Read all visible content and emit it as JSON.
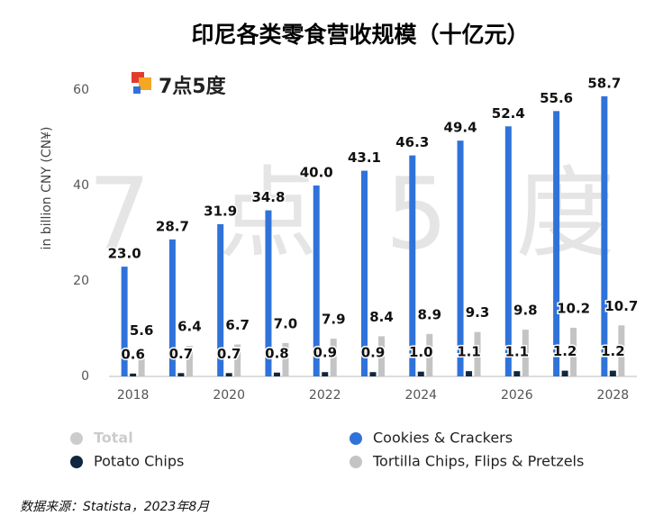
{
  "chart_data": {
    "type": "bar",
    "title": "印尼各类零食营收规模（十亿元）",
    "y_label": "in billion CNY (CN¥)",
    "logo": "7点5度",
    "watermark": "7 点 5 度",
    "source": "数据来源：Statista，2023年8月",
    "categories": [
      "2018",
      null,
      "2020",
      null,
      "2022",
      null,
      "2024",
      null,
      "2026",
      null,
      "2028"
    ],
    "series": [
      {
        "name": "Total",
        "color": "#cccccc",
        "visible": false,
        "values": [
          null,
          null,
          null,
          null,
          null,
          null,
          null,
          null,
          null,
          null,
          null
        ]
      },
      {
        "name": "Cookies & Crackers",
        "color": "#2f73da",
        "visible": true,
        "values": [
          23.0,
          28.7,
          31.9,
          34.8,
          40.0,
          43.1,
          46.3,
          49.4,
          52.4,
          55.6,
          58.7
        ],
        "value_labels": [
          "23.0",
          "28.7",
          "31.9",
          "34.8",
          "40.0",
          "43.1",
          "46.3",
          "49.4",
          "52.4",
          "55.6",
          "58.7"
        ]
      },
      {
        "name": "Potato Chips",
        "color": "#0f2740",
        "visible": true,
        "values": [
          0.6,
          0.7,
          0.7,
          0.8,
          0.9,
          0.9,
          1.0,
          1.1,
          1.1,
          1.2,
          1.2
        ],
        "value_labels": [
          "0.6",
          "0.7",
          "0.7",
          "0.8",
          "0.9",
          "0.9",
          "1.0",
          "1.1",
          "1.1",
          "1.2",
          "1.2"
        ]
      },
      {
        "name": "Tortilla Chips, Flips & Pretzels",
        "color": "#c4c4c4",
        "visible": true,
        "values": [
          5.6,
          6.4,
          6.7,
          7.0,
          7.9,
          8.4,
          8.9,
          9.3,
          9.8,
          10.2,
          10.7
        ],
        "value_labels": [
          "5.6",
          "6.4",
          "6.7",
          "7.0",
          "7.9",
          "8.4",
          "8.9",
          "9.3",
          "9.8",
          "10.2",
          "10.7"
        ]
      }
    ],
    "ylim": [
      0,
      60
    ],
    "yticks": [
      0,
      20,
      40,
      60
    ],
    "grid": false
  }
}
